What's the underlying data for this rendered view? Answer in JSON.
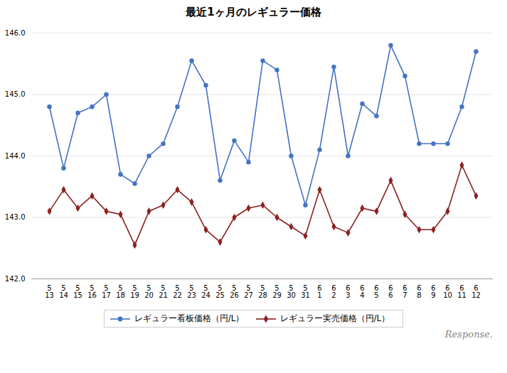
{
  "chart_data": {
    "type": "line",
    "title": "最近1ヶ月のレギュラー価格",
    "categories": [
      "5\n13",
      "5\n14",
      "5\n15",
      "5\n16",
      "5\n17",
      "5\n18",
      "5\n19",
      "5\n20",
      "5\n21",
      "5\n22",
      "5\n23",
      "5\n24",
      "5\n25",
      "5\n26",
      "5\n27",
      "5\n28",
      "5\n29",
      "5\n30",
      "5\n31",
      "6\n1",
      "6\n2",
      "6\n3",
      "6\n4",
      "6\n5",
      "6\n6",
      "6\n7",
      "6\n8",
      "6\n9",
      "6\n10",
      "6\n11",
      "6\n12"
    ],
    "series": [
      {
        "name": "レギュラー看板価格（円/L）",
        "color": "#4472C4",
        "marker": "circle",
        "values": [
          144.8,
          143.8,
          144.7,
          144.8,
          145.0,
          143.7,
          143.55,
          144.0,
          144.2,
          144.8,
          145.55,
          145.15,
          143.6,
          144.25,
          143.9,
          145.55,
          145.4,
          144.0,
          143.2,
          144.1,
          145.45,
          144.0,
          144.85,
          144.65,
          145.8,
          145.3,
          144.2,
          144.2,
          144.2,
          144.8,
          145.7
        ]
      },
      {
        "name": "レギュラー実売価格（円/L）",
        "color": "#8B2020",
        "marker": "diamond",
        "values": [
          143.1,
          143.45,
          143.15,
          143.35,
          143.1,
          143.05,
          142.55,
          143.1,
          143.2,
          143.45,
          143.25,
          142.8,
          142.6,
          143.0,
          143.15,
          143.2,
          143.0,
          142.85,
          142.7,
          143.45,
          142.85,
          142.75,
          143.15,
          143.1,
          143.6,
          143.05,
          142.8,
          142.8,
          143.1,
          143.85,
          143.35
        ]
      }
    ],
    "ylim": [
      142,
      146
    ],
    "yticks": [
      142,
      143,
      144,
      145,
      146
    ],
    "grid": true,
    "legend": "bottom",
    "annotations": [
      "Response."
    ]
  }
}
